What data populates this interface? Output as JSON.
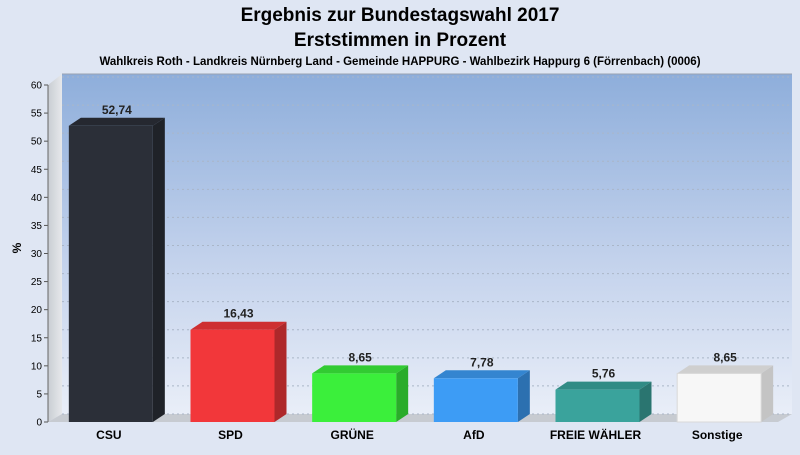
{
  "chart_data": {
    "type": "bar",
    "title": "Ergebnis zur Bundestagswahl 2017",
    "subtitle": "Erststimmen in Prozent",
    "caption": "Wahlkreis Roth - Landkreis Nürnberg Land - Gemeinde HAPPURG - Wahlbezirk Happurg 6 (Förrenbach) (0006)",
    "ylabel": "%",
    "xlabel": "",
    "ylim": [
      0,
      60
    ],
    "yticks": [
      0,
      5,
      10,
      15,
      20,
      25,
      30,
      35,
      40,
      45,
      50,
      55,
      60
    ],
    "grid": true,
    "categories": [
      "CSU",
      "SPD",
      "GRÜNE",
      "AfD",
      "FREIE WÄHLER",
      "Sonstige"
    ],
    "values": [
      52.74,
      16.43,
      8.65,
      7.78,
      5.76,
      8.65
    ],
    "value_labels": [
      "52,74",
      "16,43",
      "8,65",
      "7,78",
      "5,76",
      "8,65"
    ],
    "colors": [
      "#2b2f38",
      "#f2373a",
      "#3bef3b",
      "#3d9cf5",
      "#3aa39c",
      "#f7f7f7"
    ]
  }
}
